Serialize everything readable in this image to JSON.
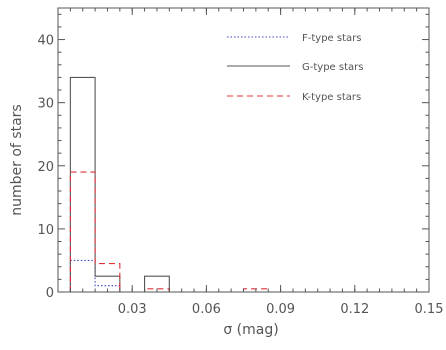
{
  "chart_data": {
    "type": "histogram",
    "title": "",
    "xlabel": "σ (mag)",
    "ylabel": "number of stars",
    "xlim": [
      0.0,
      0.15
    ],
    "ylim": [
      0,
      45
    ],
    "bin_edges": [
      0.005,
      0.015,
      0.025,
      0.035,
      0.045,
      0.055,
      0.065,
      0.075,
      0.085,
      0.095,
      0.105,
      0.115,
      0.125,
      0.135,
      0.145,
      0.15
    ],
    "x_ticks": [
      0.03,
      0.06,
      0.09,
      0.12,
      0.15
    ],
    "x_tick_labels": [
      "0.03",
      "0.06",
      "0.09",
      "0.12",
      "0.15"
    ],
    "y_ticks": [
      0,
      10,
      20,
      30,
      40
    ],
    "y_tick_labels": [
      "0",
      "10",
      "20",
      "30",
      "40"
    ],
    "grid": false,
    "legend_position": "top-right",
    "series": [
      {
        "name": "F-type stars",
        "style": "dotted",
        "color": "#3a46c8",
        "values": [
          5,
          1,
          0,
          0,
          0,
          0,
          0,
          0,
          0,
          0,
          0,
          0,
          0,
          0,
          0
        ]
      },
      {
        "name": "G-type stars",
        "style": "solid",
        "color": "#555555",
        "values": [
          34,
          2.5,
          0,
          2.5,
          0,
          0,
          0,
          0,
          0,
          0,
          0,
          0,
          0,
          0,
          0
        ]
      },
      {
        "name": "K-type stars",
        "style": "dashed",
        "color": "#e0303a",
        "values": [
          19,
          4.5,
          0,
          0.5,
          0,
          0,
          0,
          0.5,
          0,
          0,
          0,
          0,
          0,
          0,
          0
        ]
      }
    ]
  }
}
